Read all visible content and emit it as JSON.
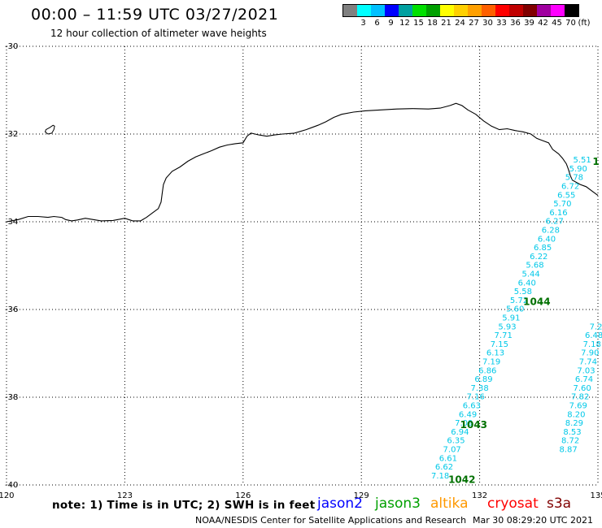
{
  "header": {
    "title": "00:00 – 11:59 UTC 03/27/2021",
    "subtitle": "12 hour collection of altimeter wave heights"
  },
  "legend": {
    "unit": "(ft)",
    "bins": [
      {
        "color": "#808080",
        "label": ""
      },
      {
        "color": "#00ffff",
        "label": "3"
      },
      {
        "color": "#00c0ff",
        "label": "6"
      },
      {
        "color": "#0000ff",
        "label": "9"
      },
      {
        "color": "#00a0a0",
        "label": "12"
      },
      {
        "color": "#00e000",
        "label": "15"
      },
      {
        "color": "#00a000",
        "label": "18"
      },
      {
        "color": "#ffff00",
        "label": "21"
      },
      {
        "color": "#ffd000",
        "label": "24"
      },
      {
        "color": "#ffa000",
        "label": "27"
      },
      {
        "color": "#ff6000",
        "label": "30"
      },
      {
        "color": "#ff0000",
        "label": "33"
      },
      {
        "color": "#c00000",
        "label": "36"
      },
      {
        "color": "#800000",
        "label": "39"
      },
      {
        "color": "#a000a0",
        "label": "42"
      },
      {
        "color": "#ff00ff",
        "label": "45"
      },
      {
        "color": "#000000",
        "label": "70"
      }
    ]
  },
  "map": {
    "lon_range": [
      120,
      135
    ],
    "lat_range": [
      -40,
      -30
    ],
    "lon_ticks": [
      "120",
      "123",
      "126",
      "129",
      "132",
      "135"
    ],
    "lat_ticks": [
      "-30",
      "-32",
      "-34",
      "-36",
      "-38",
      "-40"
    ],
    "track_color": "#00c8e8",
    "time_color": "#007000",
    "coastline": [
      [
        121.2,
        -31.86
      ],
      [
        121.4,
        -31.86
      ],
      [
        121.52,
        -31.84
      ],
      [
        121.6,
        -31.9
      ],
      [
        121.7,
        -31.94
      ],
      [
        122.0,
        -31.95
      ],
      [
        122.3,
        -31.9
      ],
      [
        122.8,
        -31.9
      ],
      [
        123.1,
        -31.98
      ],
      [
        123.4,
        -32.1
      ],
      [
        123.7,
        -32.2
      ],
      [
        124.0,
        -32.22
      ],
      [
        124.4,
        -32.2
      ],
      [
        124.7,
        -32.08
      ],
      [
        124.95,
        -31.96
      ],
      [
        125.3,
        -31.85
      ],
      [
        125.7,
        -31.7
      ],
      [
        126.1,
        -31.64
      ],
      [
        126.35,
        -31.62
      ],
      [
        126.8,
        -31.65
      ],
      [
        127.3,
        -31.78
      ],
      [
        127.7,
        -31.85
      ],
      [
        128.0,
        -31.8
      ],
      [
        128.4,
        -31.68
      ],
      [
        128.8,
        -31.58
      ],
      [
        129.0,
        -31.52
      ],
      [
        129.5,
        -31.45
      ],
      [
        130.1,
        -31.42
      ],
      [
        130.7,
        -31.45
      ],
      [
        131.0,
        -31.45
      ],
      [
        131.3,
        -31.38
      ],
      [
        131.45,
        -31.4
      ],
      [
        131.7,
        -31.52
      ],
      [
        132.0,
        -31.7
      ],
      [
        132.2,
        -31.9
      ],
      [
        132.4,
        -32.0
      ],
      [
        132.6,
        -32.05
      ],
      [
        132.85,
        -32.0
      ],
      [
        133.1,
        -32.05
      ],
      [
        133.35,
        -32.1
      ],
      [
        133.6,
        -32.18
      ],
      [
        133.85,
        -32.3
      ],
      [
        134.05,
        -32.45
      ],
      [
        134.15,
        -32.6
      ],
      [
        134.25,
        -32.7
      ],
      [
        134.4,
        -32.8
      ],
      [
        134.55,
        -32.9
      ],
      [
        134.65,
        -33.0
      ],
      [
        134.8,
        -33.15
      ],
      [
        134.92,
        -33.3
      ],
      [
        135.0,
        -33.5
      ]
    ],
    "coastline_south": [
      [
        120.0,
        -34.0
      ],
      [
        120.3,
        -33.95
      ],
      [
        120.55,
        -33.88
      ],
      [
        120.8,
        -33.88
      ],
      [
        121.05,
        -33.9
      ],
      [
        121.2,
        -33.88
      ],
      [
        121.4,
        -33.9
      ],
      [
        121.5,
        -33.95
      ],
      [
        121.65,
        -33.98
      ],
      [
        121.8,
        -33.96
      ],
      [
        122.0,
        -33.92
      ],
      [
        122.2,
        -33.95
      ],
      [
        122.4,
        -33.98
      ],
      [
        122.7,
        -33.97
      ],
      [
        123.0,
        -33.92
      ],
      [
        123.2,
        -33.98
      ],
      [
        123.4,
        -33.98
      ],
      [
        123.55,
        -33.9
      ],
      [
        123.7,
        -33.8
      ],
      [
        123.85,
        -33.7
      ],
      [
        123.92,
        -33.55
      ],
      [
        123.95,
        -33.35
      ],
      [
        123.98,
        -33.15
      ],
      [
        124.05,
        -33.0
      ],
      [
        124.2,
        -32.85
      ],
      [
        124.4,
        -32.75
      ],
      [
        124.6,
        -32.62
      ],
      [
        124.8,
        -32.52
      ],
      [
        125.0,
        -32.45
      ],
      [
        125.2,
        -32.38
      ],
      [
        125.4,
        -32.3
      ],
      [
        125.6,
        -32.25
      ],
      [
        125.8,
        -32.22
      ],
      [
        126.0,
        -32.2
      ],
      [
        126.1,
        -32.05
      ],
      [
        126.2,
        -31.98
      ],
      [
        126.4,
        -32.02
      ],
      [
        126.6,
        -32.05
      ],
      [
        126.8,
        -32.02
      ],
      [
        127.0,
        -32.0
      ],
      [
        127.3,
        -31.98
      ],
      [
        127.6,
        -31.9
      ],
      [
        127.9,
        -31.8
      ],
      [
        128.1,
        -31.72
      ],
      [
        128.3,
        -31.62
      ],
      [
        128.5,
        -31.55
      ],
      [
        128.8,
        -31.5
      ],
      [
        129.1,
        -31.47
      ],
      [
        129.5,
        -31.45
      ],
      [
        129.9,
        -31.43
      ],
      [
        130.3,
        -31.42
      ],
      [
        130.7,
        -31.43
      ],
      [
        131.0,
        -31.41
      ],
      [
        131.25,
        -31.35
      ],
      [
        131.4,
        -31.3
      ],
      [
        131.55,
        -31.35
      ],
      [
        131.7,
        -31.45
      ],
      [
        131.9,
        -31.55
      ],
      [
        132.1,
        -31.7
      ],
      [
        132.3,
        -31.82
      ],
      [
        132.5,
        -31.9
      ],
      [
        132.7,
        -31.88
      ],
      [
        132.9,
        -31.92
      ],
      [
        133.1,
        -31.95
      ],
      [
        133.3,
        -32.0
      ],
      [
        133.45,
        -32.1
      ],
      [
        133.6,
        -32.15
      ],
      [
        133.75,
        -32.2
      ],
      [
        133.85,
        -32.35
      ],
      [
        134.0,
        -32.45
      ],
      [
        134.1,
        -32.55
      ],
      [
        134.2,
        -32.68
      ],
      [
        134.25,
        -32.8
      ],
      [
        134.3,
        -32.95
      ],
      [
        134.35,
        -33.05
      ],
      [
        134.55,
        -33.15
      ],
      [
        134.7,
        -33.2
      ],
      [
        134.85,
        -33.3
      ],
      [
        135.0,
        -33.4
      ]
    ],
    "island_small": [
      [
        121.0,
        -31.9
      ],
      [
        121.1,
        -31.85
      ],
      [
        121.18,
        -31.8
      ],
      [
        121.22,
        -31.82
      ],
      [
        121.2,
        -31.9
      ],
      [
        121.15,
        -31.98
      ],
      [
        121.05,
        -32.0
      ],
      [
        120.98,
        -31.95
      ],
      [
        121.0,
        -31.9
      ]
    ],
    "tracks": [
      {
        "name": "pass-1042",
        "time_label": {
          "text": "1042",
          "lon": 131.55,
          "lat": -39.95
        },
        "points": [
          {
            "lon": 131.0,
            "lat": -39.85,
            "swh": "7.18"
          },
          {
            "lon": 131.1,
            "lat": -39.65,
            "swh": "6.62"
          },
          {
            "lon": 131.2,
            "lat": -39.45,
            "swh": "6.61"
          },
          {
            "lon": 131.3,
            "lat": -39.25,
            "swh": "7.07"
          },
          {
            "lon": 131.4,
            "lat": -39.05,
            "swh": "6.35"
          },
          {
            "lon": 131.5,
            "lat": -38.85,
            "swh": "6.94"
          },
          {
            "lon": 131.6,
            "lat": -38.65,
            "swh": "7.09"
          },
          {
            "lon": 131.7,
            "lat": -38.45,
            "swh": "6.49"
          },
          {
            "lon": 131.8,
            "lat": -38.25,
            "swh": "6.63"
          },
          {
            "lon": 131.9,
            "lat": -38.05,
            "swh": "7.16"
          },
          {
            "lon": 132.0,
            "lat": -37.85,
            "swh": "7.38"
          },
          {
            "lon": 132.1,
            "lat": -37.65,
            "swh": "6.89"
          },
          {
            "lon": 132.2,
            "lat": -37.45,
            "swh": "6.86"
          },
          {
            "lon": 132.3,
            "lat": -37.25,
            "swh": "7.19"
          },
          {
            "lon": 132.4,
            "lat": -37.05,
            "swh": "6.13"
          },
          {
            "lon": 132.5,
            "lat": -36.85,
            "swh": "7.15"
          },
          {
            "lon": 132.6,
            "lat": -36.65,
            "swh": "7.71"
          },
          {
            "lon": 132.7,
            "lat": -36.45,
            "swh": "5.93"
          },
          {
            "lon": 132.8,
            "lat": -36.25,
            "swh": "5.91"
          },
          {
            "lon": 132.9,
            "lat": -36.05,
            "swh": "5.60"
          },
          {
            "lon": 133.0,
            "lat": -35.85,
            "swh": "5.72"
          },
          {
            "lon": 133.1,
            "lat": -35.65,
            "swh": "5.58"
          },
          {
            "lon": 133.2,
            "lat": -35.45,
            "swh": "6.40"
          },
          {
            "lon": 133.3,
            "lat": -35.25,
            "swh": "5.44"
          },
          {
            "lon": 133.4,
            "lat": -35.05,
            "swh": "5.68"
          },
          {
            "lon": 133.5,
            "lat": -34.85,
            "swh": "6.22"
          },
          {
            "lon": 133.6,
            "lat": -34.65,
            "swh": "6.85"
          },
          {
            "lon": 133.7,
            "lat": -34.45,
            "swh": "6.40"
          },
          {
            "lon": 133.8,
            "lat": -34.25,
            "swh": "6.28"
          },
          {
            "lon": 133.9,
            "lat": -34.05,
            "swh": "6.27"
          },
          {
            "lon": 134.0,
            "lat": -33.85,
            "swh": "6.16"
          },
          {
            "lon": 134.1,
            "lat": -33.65,
            "swh": "5.70"
          },
          {
            "lon": 134.2,
            "lat": -33.45,
            "swh": "6.55"
          },
          {
            "lon": 134.3,
            "lat": -33.25,
            "swh": "6.72"
          },
          {
            "lon": 134.4,
            "lat": -33.05,
            "swh": "5.78"
          },
          {
            "lon": 134.5,
            "lat": -32.85,
            "swh": "5.90"
          },
          {
            "lon": 134.6,
            "lat": -32.65,
            "swh": "5.51"
          }
        ]
      },
      {
        "name": "pass-1043",
        "time_label": {
          "text": "1043",
          "lon": 131.85,
          "lat": -38.7
        },
        "points": []
      },
      {
        "name": "pass-1044",
        "time_label": {
          "text": "1044",
          "lon": 133.45,
          "lat": -35.9
        },
        "points": []
      },
      {
        "name": "pass-east",
        "time_label": {
          "text": "1",
          "lon": 134.95,
          "lat": -32.7
        },
        "points": [
          {
            "lon": 134.25,
            "lat": -39.25,
            "swh": "8.87"
          },
          {
            "lon": 134.3,
            "lat": -39.05,
            "swh": "8.72"
          },
          {
            "lon": 134.35,
            "lat": -38.85,
            "swh": "8.53"
          },
          {
            "lon": 134.4,
            "lat": -38.65,
            "swh": "8.29"
          },
          {
            "lon": 134.45,
            "lat": -38.45,
            "swh": "8.20"
          },
          {
            "lon": 134.5,
            "lat": -38.25,
            "swh": "7.69"
          },
          {
            "lon": 134.55,
            "lat": -38.05,
            "swh": "7.82"
          },
          {
            "lon": 134.6,
            "lat": -37.85,
            "swh": "7.60"
          },
          {
            "lon": 134.65,
            "lat": -37.65,
            "swh": "6.74"
          },
          {
            "lon": 134.7,
            "lat": -37.45,
            "swh": "7.03"
          },
          {
            "lon": 134.75,
            "lat": -37.25,
            "swh": "7.74"
          },
          {
            "lon": 134.8,
            "lat": -37.05,
            "swh": "7.90"
          },
          {
            "lon": 134.85,
            "lat": -36.85,
            "swh": "7.18"
          },
          {
            "lon": 134.9,
            "lat": -36.65,
            "swh": "6.48"
          },
          {
            "lon": 134.95,
            "lat": -36.45,
            "swh": "7.2"
          }
        ]
      }
    ]
  },
  "footer": {
    "note": "note: 1) Time is in UTC; 2) SWH is in feet",
    "satellites": [
      {
        "name": "jason2",
        "color": "#0000ff"
      },
      {
        "name": "jason3",
        "color": "#00a000"
      },
      {
        "name": "altika",
        "color": "#ff9900"
      },
      {
        "name": "cryosat",
        "color": "#ff0000"
      },
      {
        "name": "s3a",
        "color": "#800000"
      }
    ],
    "credit": "NOAA/NESDIS Center for Satellite Applications and Research",
    "timestamp": "Mar 30 08:29:20 UTC 2021"
  }
}
